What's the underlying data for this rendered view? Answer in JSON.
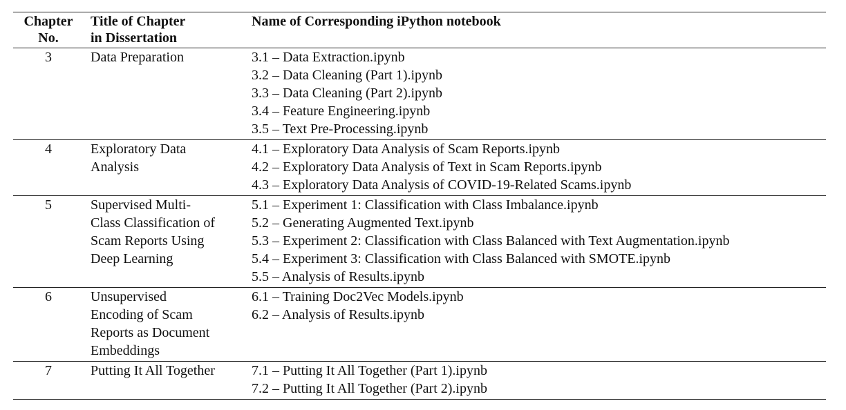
{
  "headers": {
    "chapter_no": [
      "Chapter",
      "No."
    ],
    "title": [
      "Title of Chapter",
      "in Dissertation"
    ],
    "notebook": "Name of Corresponding iPython notebook"
  },
  "rows": [
    {
      "chapter": "3",
      "title_lines": [
        "Data Preparation"
      ],
      "notebooks": [
        "3.1 – Data Extraction.ipynb",
        "3.2 – Data Cleaning (Part 1).ipynb",
        "3.3 – Data Cleaning (Part 2).ipynb",
        "3.4 – Feature Engineering.ipynb",
        "3.5 – Text Pre-Processing.ipynb"
      ]
    },
    {
      "chapter": "4",
      "title_lines": [
        "Exploratory Data",
        "Analysis"
      ],
      "notebooks": [
        "4.1 – Exploratory Data Analysis of Scam Reports.ipynb",
        "4.2 – Exploratory Data Analysis of Text in Scam Reports.ipynb",
        "4.3 – Exploratory Data Analysis of COVID-19-Related Scams.ipynb"
      ]
    },
    {
      "chapter": "5",
      "title_lines": [
        "Supervised Multi-",
        "Class Classification of",
        "Scam Reports Using",
        "Deep Learning"
      ],
      "notebooks": [
        "5.1 – Experiment 1: Classification with Class Imbalance.ipynb",
        "5.2 – Generating Augmented Text.ipynb",
        "5.3 – Experiment 2: Classification with Class Balanced with Text Augmentation.ipynb",
        "5.4 – Experiment 3: Classification with Class Balanced with SMOTE.ipynb",
        "5.5 – Analysis of Results.ipynb"
      ]
    },
    {
      "chapter": "6",
      "title_lines": [
        "Unsupervised",
        "Encoding of Scam",
        "Reports as Document",
        "Embeddings"
      ],
      "notebooks": [
        "6.1 – Training Doc2Vec Models.ipynb",
        "6.2 – Analysis of Results.ipynb"
      ]
    },
    {
      "chapter": "7",
      "title_lines": [
        "Putting It All Together"
      ],
      "notebooks": [
        "7.1 – Putting It All Together (Part 1).ipynb",
        "7.2 – Putting It All Together (Part 2).ipynb"
      ]
    }
  ]
}
